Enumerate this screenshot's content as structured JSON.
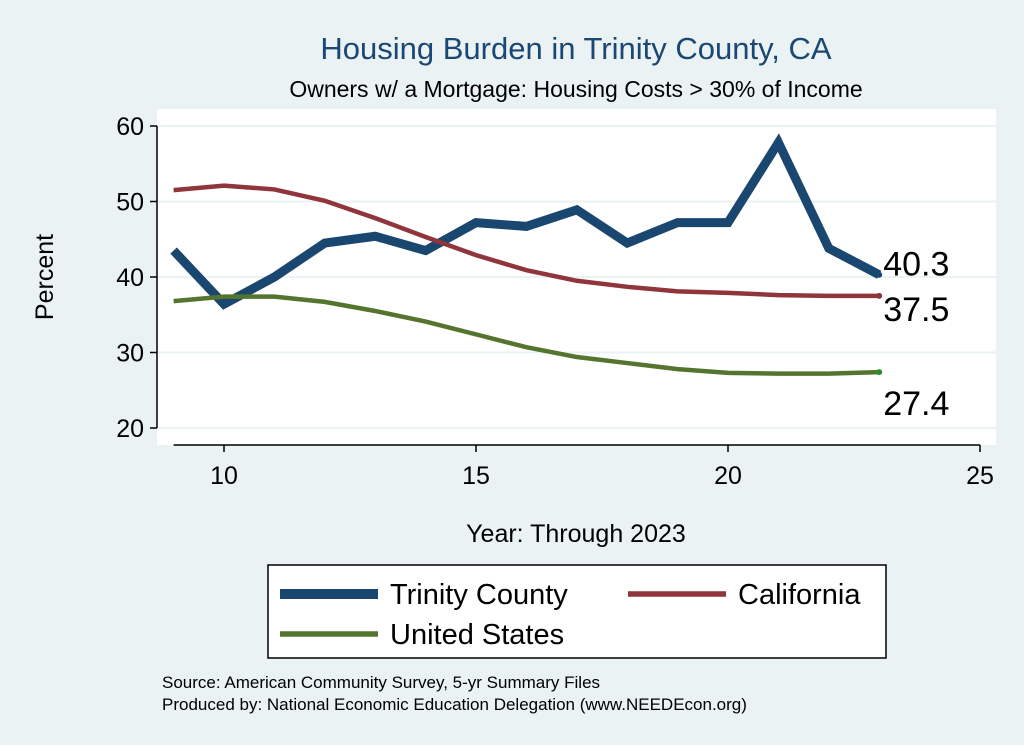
{
  "chart_data": {
    "type": "line",
    "title": "Housing Burden in Trinity County, CA",
    "subtitle": "Owners w/ a Mortgage: Housing Costs > 30% of Income",
    "xlabel": "Year: Through 2023",
    "ylabel": "Percent",
    "xlim": [
      9,
      25
    ],
    "ylim": [
      20,
      60
    ],
    "xticks": [
      10,
      15,
      20,
      25
    ],
    "yticks": [
      20,
      30,
      40,
      50,
      60
    ],
    "grid": true,
    "legend_position": "bottom",
    "x": [
      9,
      10,
      11,
      12,
      13,
      14,
      15,
      16,
      17,
      18,
      19,
      20,
      21,
      22,
      23
    ],
    "series": [
      {
        "name": "Trinity County",
        "color": "#1a476f",
        "values": [
          43.5,
          36.4,
          40.0,
          44.5,
          45.4,
          43.5,
          47.2,
          46.7,
          48.9,
          44.5,
          47.2,
          47.2,
          57.8,
          43.8,
          40.3
        ],
        "end_label": "40.3"
      },
      {
        "name": "California",
        "color": "#90353b",
        "values": [
          51.5,
          52.1,
          51.6,
          50.1,
          47.8,
          45.3,
          42.9,
          40.9,
          39.5,
          38.7,
          38.1,
          37.9,
          37.6,
          37.5,
          37.5
        ],
        "end_label": "37.5"
      },
      {
        "name": "United States",
        "color": "#55752f",
        "values": [
          36.8,
          37.4,
          37.4,
          36.7,
          35.5,
          34.1,
          32.4,
          30.7,
          29.4,
          28.6,
          27.8,
          27.3,
          27.2,
          27.2,
          27.4
        ],
        "end_label": "27.4"
      }
    ],
    "notes": [
      "Source: American Community Survey, 5-yr Summary Files",
      "Produced by: National Economic Education Delegation (www.NEEDEcon.org)"
    ]
  }
}
